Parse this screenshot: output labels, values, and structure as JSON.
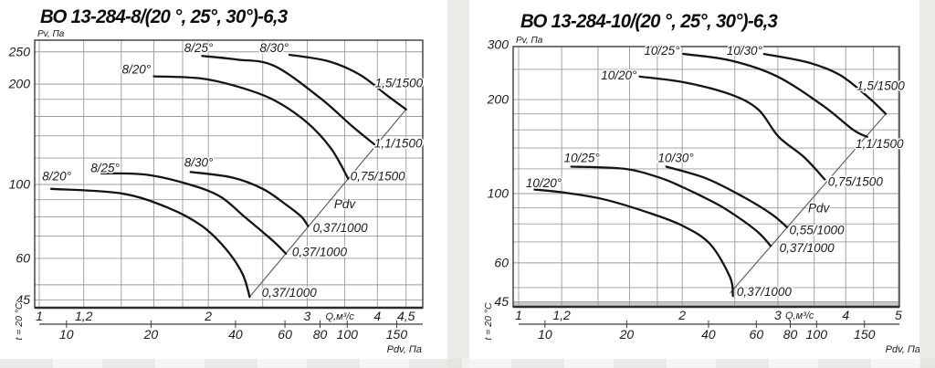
{
  "page": {
    "background": "#ffffff",
    "strip_color": "#ebebe8",
    "curve_color": "#141414",
    "grid_color": "#9a9a9a",
    "frame_color": "#3b3b3b"
  },
  "chart_data": [
    {
      "type": "line",
      "title": "ВО 13-284-8/(20 °, 25°, 30°)-6,3",
      "y_axis": {
        "label": "Pv, Па",
        "scale": "log",
        "range": [
          45,
          272
        ],
        "tick_values": [
          250,
          200,
          100,
          60,
          45
        ],
        "tick_labels": [
          "250",
          "200",
          "100",
          "60",
          "45"
        ],
        "gridlines": [
          45,
          50,
          60,
          70,
          80,
          90,
          100,
          120,
          140,
          160,
          180,
          200,
          250
        ]
      },
      "x_axis": {
        "label": "Q,м³/с",
        "scale": "log",
        "range": [
          1,
          4.8
        ],
        "tick_values": [
          1,
          1.2,
          2,
          3,
          4,
          4.5
        ],
        "tick_labels": [
          "1",
          "1,2",
          "2",
          "3",
          "4",
          "4,5"
        ],
        "gridlines": [
          1,
          1.2,
          1.4,
          1.6,
          1.8,
          2,
          2.5,
          3,
          3.5,
          4,
          4.5
        ]
      },
      "x2_axis": {
        "label": "Pdv, Па",
        "tick_values": [
          10,
          20,
          40,
          60,
          80,
          100,
          150
        ],
        "tick_labels": [
          "10",
          "20",
          "40",
          "60",
          "80",
          "100",
          "150"
        ]
      },
      "note": "t = 20 °C",
      "pdv_line": {
        "label": "Pdv",
        "from": [
          2.37,
          46
        ],
        "to": [
          4.5,
          168
        ],
        "label_at": [
          3.35,
          85
        ]
      },
      "series": [
        {
          "label": "8/20°",
          "motor": "0,75/1500",
          "label_at": [
            1.58,
            215
          ],
          "motor_at": [
            3.58,
            103
          ],
          "points": [
            [
              1.6,
              211
            ],
            [
              1.94,
              208
            ],
            [
              2.27,
              196
            ],
            [
              2.62,
              179
            ],
            [
              2.99,
              154
            ],
            [
              3.31,
              128
            ],
            [
              3.55,
              104
            ]
          ]
        },
        {
          "label": "8/25°",
          "motor": "1,1/1500",
          "label_at": [
            2.04,
            250
          ],
          "motor_at": [
            3.95,
            129
          ],
          "points": [
            [
              1.95,
              243
            ],
            [
              2.25,
              237
            ],
            [
              2.62,
              227
            ],
            [
              3.16,
              182
            ],
            [
              3.6,
              150
            ],
            [
              3.95,
              132
            ]
          ]
        },
        {
          "label": "8/30°",
          "motor": "1,5/1500",
          "label_at": [
            2.78,
            250
          ],
          "motor_at": [
            3.96,
            196
          ],
          "points": [
            [
              2.79,
              245
            ],
            [
              3.28,
              234
            ],
            [
              3.73,
              213
            ],
            [
              4.18,
              184
            ],
            [
              4.5,
              168
            ]
          ]
        },
        {
          "label": "8/20°",
          "motor": "0,37/1000",
          "label_at": [
            1.14,
            103
          ],
          "motor_at": [
            2.49,
            46
          ],
          "points": [
            [
              1.05,
              97
            ],
            [
              1.4,
              94
            ],
            [
              1.7,
              85
            ],
            [
              1.95,
              75
            ],
            [
              2.15,
              64
            ],
            [
              2.3,
              54
            ],
            [
              2.37,
              46
            ]
          ]
        },
        {
          "label": "8/25°",
          "motor": "0,37/1000",
          "label_at": [
            1.39,
            109
          ],
          "motor_at": [
            2.82,
            61
          ],
          "points": [
            [
              1.29,
              108
            ],
            [
              1.55,
              107
            ],
            [
              1.85,
              100
            ],
            [
              2.1,
              92
            ],
            [
              2.32,
              80
            ],
            [
              2.6,
              68
            ],
            [
              2.75,
              62
            ]
          ]
        },
        {
          "label": "8/30°",
          "motor": "0,37/1000",
          "label_at": [
            2.04,
            113
          ],
          "motor_at": [
            3.07,
            72
          ],
          "points": [
            [
              1.86,
              109
            ],
            [
              2.2,
              105
            ],
            [
              2.5,
              97
            ],
            [
              2.75,
              87
            ],
            [
              2.93,
              80
            ],
            [
              3.01,
              75
            ]
          ]
        }
      ]
    },
    {
      "type": "line",
      "title": "ВО 13-284-10/(20 °, 25°, 30°)-6,3",
      "y_axis": {
        "label": "Pv, Па",
        "scale": "log",
        "range": [
          45,
          300
        ],
        "tick_values": [
          300,
          200,
          100,
          60,
          45
        ],
        "tick_labels": [
          "300",
          "200",
          "100",
          "60",
          "45"
        ],
        "gridlines": [
          45,
          50,
          60,
          70,
          80,
          90,
          100,
          120,
          140,
          160,
          180,
          200,
          250,
          300
        ]
      },
      "x_axis": {
        "label": "Q,м³/с",
        "scale": "log",
        "range": [
          1,
          5
        ],
        "tick_values": [
          1,
          1.2,
          2,
          3,
          4,
          5
        ],
        "tick_labels": [
          "1",
          "1,2",
          "2",
          "3",
          "4",
          "5"
        ],
        "gridlines": [
          1,
          1.2,
          1.4,
          1.6,
          1.8,
          2,
          2.5,
          3,
          3.5,
          4,
          4.5,
          5
        ]
      },
      "x2_axis": {
        "label": "Pdv, Па",
        "tick_values": [
          10,
          20,
          40,
          60,
          80,
          100,
          150
        ],
        "tick_labels": [
          "10",
          "20",
          "40",
          "60",
          "80",
          "100",
          "150"
        ]
      },
      "note": "t = 20 °C",
      "pdv_line": {
        "label": "Pdv",
        "from": [
          2.45,
          48
        ],
        "to": [
          4.74,
          180
        ],
        "label_at": [
          3.41,
          87
        ]
      },
      "series": [
        {
          "label": "10/20°",
          "motor": "0,75/1500",
          "label_at": [
            1.65,
            232
          ],
          "motor_at": [
            3.71,
            106
          ],
          "points": [
            [
              1.67,
              237
            ],
            [
              2.02,
              227
            ],
            [
              2.45,
              208
            ],
            [
              2.76,
              186
            ],
            [
              3.01,
              152
            ],
            [
              3.35,
              131
            ],
            [
              3.66,
              111
            ]
          ]
        },
        {
          "label": "10/25°",
          "motor": "1,1/1500",
          "label_at": [
            1.98,
            278
          ],
          "motor_at": [
            4.17,
            140
          ],
          "points": [
            [
              2.01,
              280
            ],
            [
              2.45,
              267
            ],
            [
              2.98,
              238
            ],
            [
              3.62,
              192
            ],
            [
              4.13,
              160
            ],
            [
              4.38,
              152
            ]
          ]
        },
        {
          "label": "10/30°",
          "motor": "1,5/1500",
          "label_at": [
            2.81,
            278
          ],
          "motor_at": [
            4.19,
            215
          ],
          "points": [
            [
              2.83,
              280
            ],
            [
              3.41,
              263
            ],
            [
              3.9,
              240
            ],
            [
              4.38,
              205
            ],
            [
              4.74,
              180
            ]
          ]
        },
        {
          "label": "10/20°",
          "motor": "0,37/1000",
          "label_at": [
            1.2,
            105
          ],
          "motor_at": [
            2.52,
            47
          ],
          "points": [
            [
              1.07,
              103
            ],
            [
              1.2,
              101
            ],
            [
              1.43,
              96
            ],
            [
              1.73,
              87
            ],
            [
              2.0,
              79
            ],
            [
              2.25,
              69
            ],
            [
              2.45,
              54
            ],
            [
              2.48,
              47
            ]
          ]
        },
        {
          "label": "10/25°",
          "motor": "0,37/1000",
          "label_at": [
            1.41,
            126
          ],
          "motor_at": [
            3.02,
            65
          ],
          "points": [
            [
              1.25,
              122
            ],
            [
              1.57,
              120
            ],
            [
              1.83,
              112
            ],
            [
              2.0,
              105
            ],
            [
              2.2,
              97
            ],
            [
              2.41,
              89
            ],
            [
              2.74,
              76
            ],
            [
              2.91,
              68
            ]
          ]
        },
        {
          "label": "10/30°",
          "motor": "0,55/1000",
          "label_at": [
            2.1,
            126
          ],
          "motor_at": [
            3.15,
            74
          ],
          "points": [
            [
              1.87,
              122
            ],
            [
              2.21,
              112
            ],
            [
              2.58,
              98
            ],
            [
              2.92,
              86
            ],
            [
              3.12,
              78
            ]
          ]
        }
      ]
    }
  ]
}
